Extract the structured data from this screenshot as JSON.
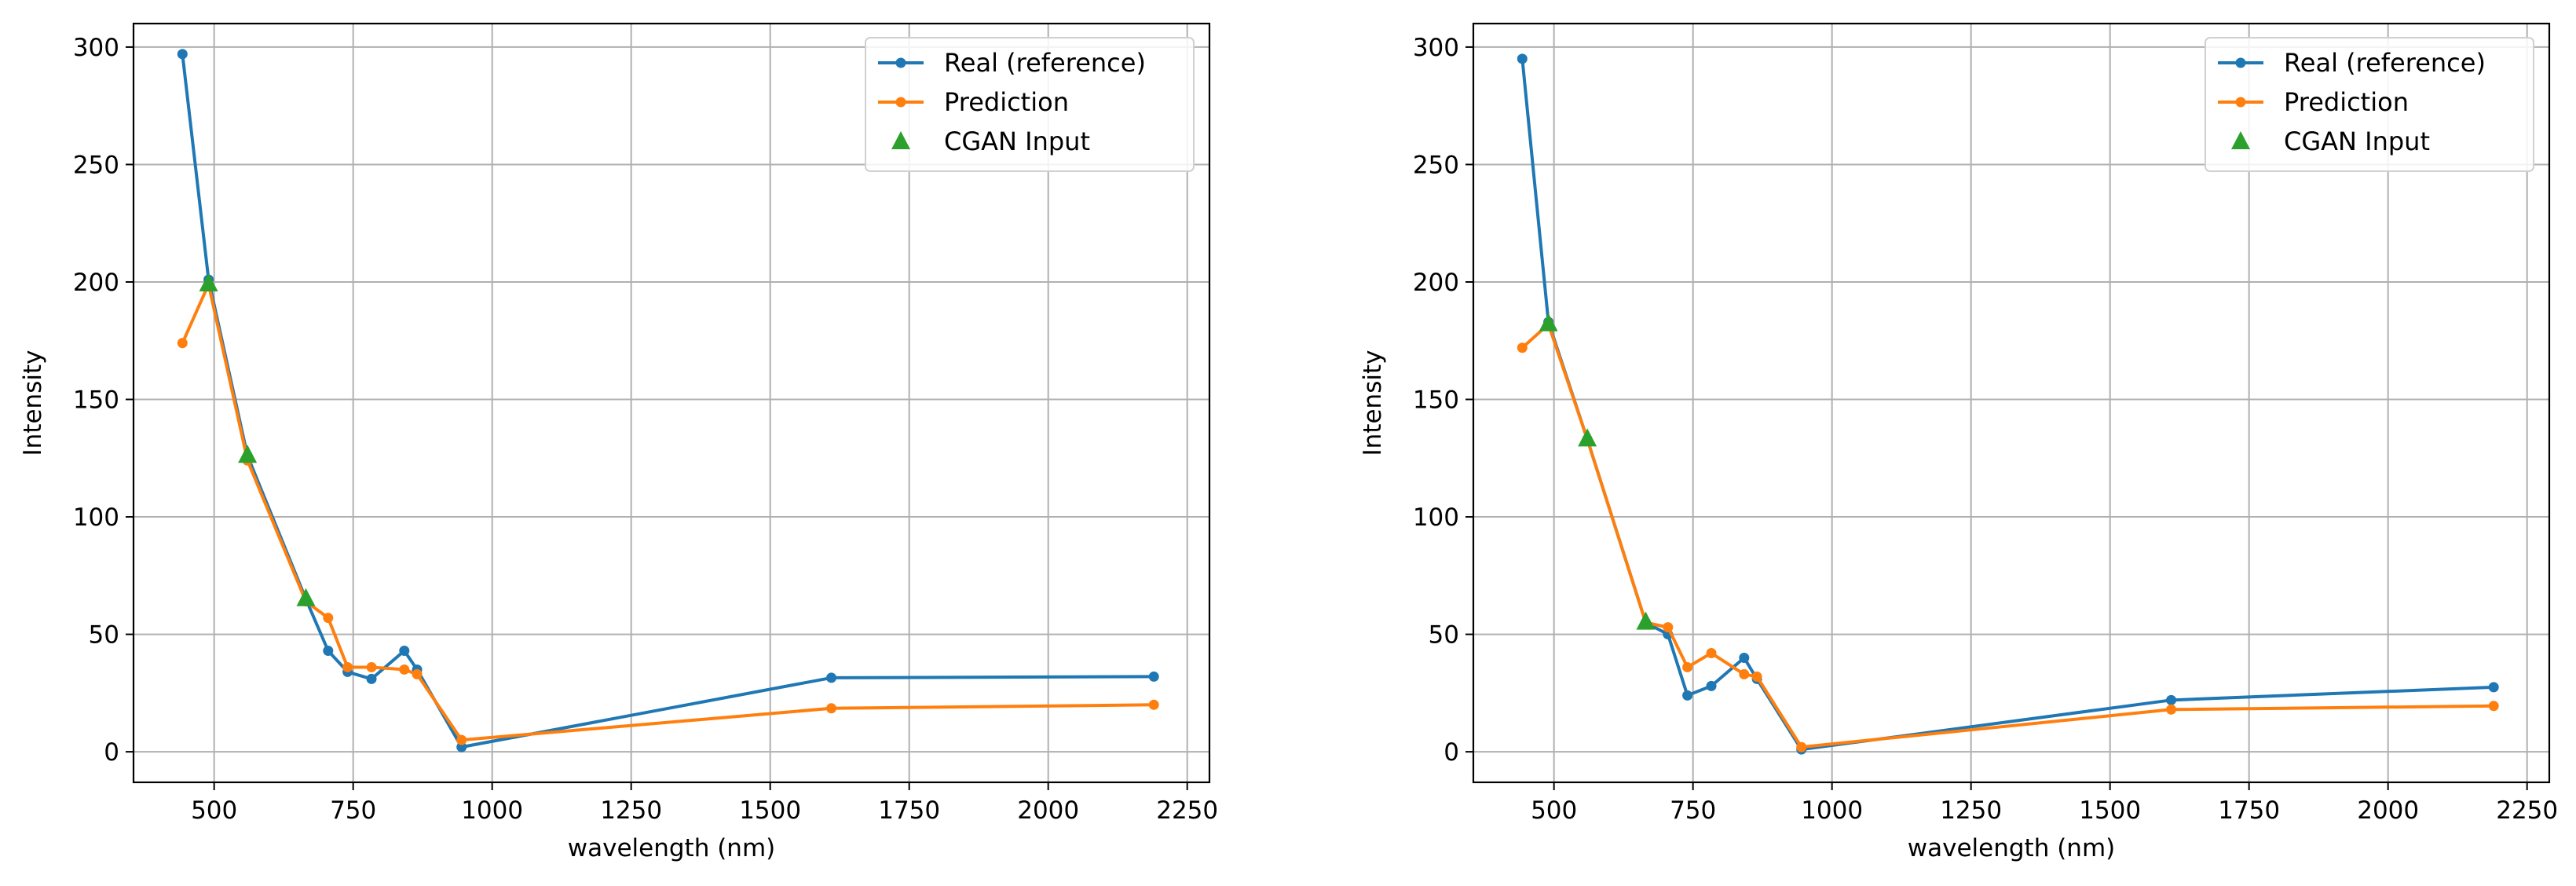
{
  "chart_data": [
    {
      "type": "line",
      "xlabel": "wavelength (nm)",
      "ylabel": "Intensity",
      "xlim": [
        355,
        2290
      ],
      "ylim": [
        -13,
        310
      ],
      "xticks": [
        500,
        750,
        1000,
        1250,
        1500,
        1750,
        2000,
        2250
      ],
      "yticks": [
        0,
        50,
        100,
        150,
        200,
        250,
        300
      ],
      "grid": true,
      "legend_position": "top-right",
      "series": [
        {
          "name": "Real (reference)",
          "color": "#1f77b4",
          "marker": "dot",
          "x": [
            443,
            490,
            560,
            665,
            705,
            740,
            783,
            842,
            865,
            945,
            1610,
            2190
          ],
          "y": [
            297,
            201,
            126,
            65,
            43,
            34,
            31,
            43,
            35,
            2,
            31.5,
            32
          ]
        },
        {
          "name": "Prediction",
          "color": "#ff7f0e",
          "marker": "dot",
          "x": [
            443,
            490,
            560,
            665,
            705,
            740,
            783,
            842,
            865,
            945,
            1610,
            2190
          ],
          "y": [
            174,
            199,
            124,
            64,
            57,
            36,
            36,
            35,
            33,
            5,
            18.5,
            20
          ]
        },
        {
          "name": "CGAN Input",
          "color": "#2ca02c",
          "marker": "triangle",
          "x": [
            490,
            560,
            665
          ],
          "y": [
            199,
            126,
            65
          ]
        }
      ]
    },
    {
      "type": "line",
      "xlabel": "wavelength (nm)",
      "ylabel": "Intensity",
      "xlim": [
        355,
        2290
      ],
      "ylim": [
        -13,
        310
      ],
      "xticks": [
        500,
        750,
        1000,
        1250,
        1500,
        1750,
        2000,
        2250
      ],
      "yticks": [
        0,
        50,
        100,
        150,
        200,
        250,
        300
      ],
      "grid": true,
      "legend_position": "top-right",
      "series": [
        {
          "name": "Real (reference)",
          "color": "#1f77b4",
          "marker": "dot",
          "x": [
            443,
            490,
            560,
            665,
            705,
            740,
            783,
            842,
            865,
            945,
            1610,
            2190
          ],
          "y": [
            295,
            183,
            133,
            55,
            50,
            24,
            28,
            40,
            31,
            1,
            22,
            27.5
          ]
        },
        {
          "name": "Prediction",
          "color": "#ff7f0e",
          "marker": "dot",
          "x": [
            443,
            490,
            560,
            665,
            705,
            740,
            783,
            842,
            865,
            945,
            1610,
            2190
          ],
          "y": [
            172,
            182,
            133,
            55,
            53,
            36,
            42,
            33,
            32,
            2,
            18,
            19.5
          ]
        },
        {
          "name": "CGAN Input",
          "color": "#2ca02c",
          "marker": "triangle",
          "x": [
            490,
            560,
            665
          ],
          "y": [
            182,
            133,
            55
          ]
        }
      ]
    }
  ]
}
